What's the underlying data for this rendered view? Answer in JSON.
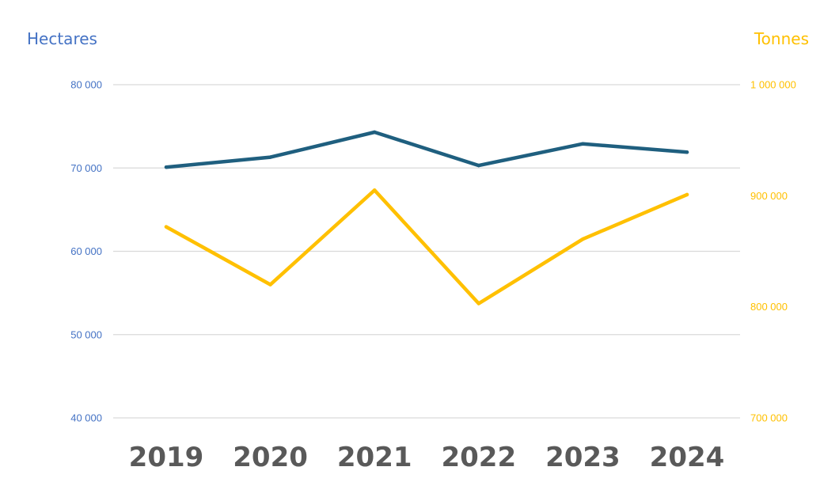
{
  "chart_data": {
    "type": "line",
    "categories": [
      "2019",
      "2020",
      "2021",
      "2022",
      "2023",
      "2024"
    ],
    "left_axis": {
      "title": "Hectares",
      "range": [
        40000,
        80000
      ],
      "ticks": [
        40000,
        50000,
        60000,
        70000,
        80000
      ],
      "tick_labels": [
        "40 000",
        "50 000",
        "60 000",
        "70 000",
        "80 000"
      ],
      "color": "#4472C4"
    },
    "right_axis": {
      "title": "Tonnes",
      "range": [
        700000,
        1000000
      ],
      "ticks": [
        700000,
        800000,
        900000,
        1000000
      ],
      "tick_labels": [
        "700 000",
        "800 000",
        "900 000",
        "1 000 000"
      ],
      "color": "#FFC000"
    },
    "series": [
      {
        "axis": "left",
        "color": "#1F5F7F",
        "values": [
          70100,
          71300,
          74300,
          70300,
          72900,
          71900
        ]
      },
      {
        "axis": "right",
        "color": "#FFC000",
        "values": [
          872000,
          820000,
          905000,
          803000,
          861000,
          901000
        ]
      }
    ],
    "x_tick_color": "#595959",
    "grid": true,
    "grid_color": "#D9D9D9",
    "legend": "none"
  }
}
